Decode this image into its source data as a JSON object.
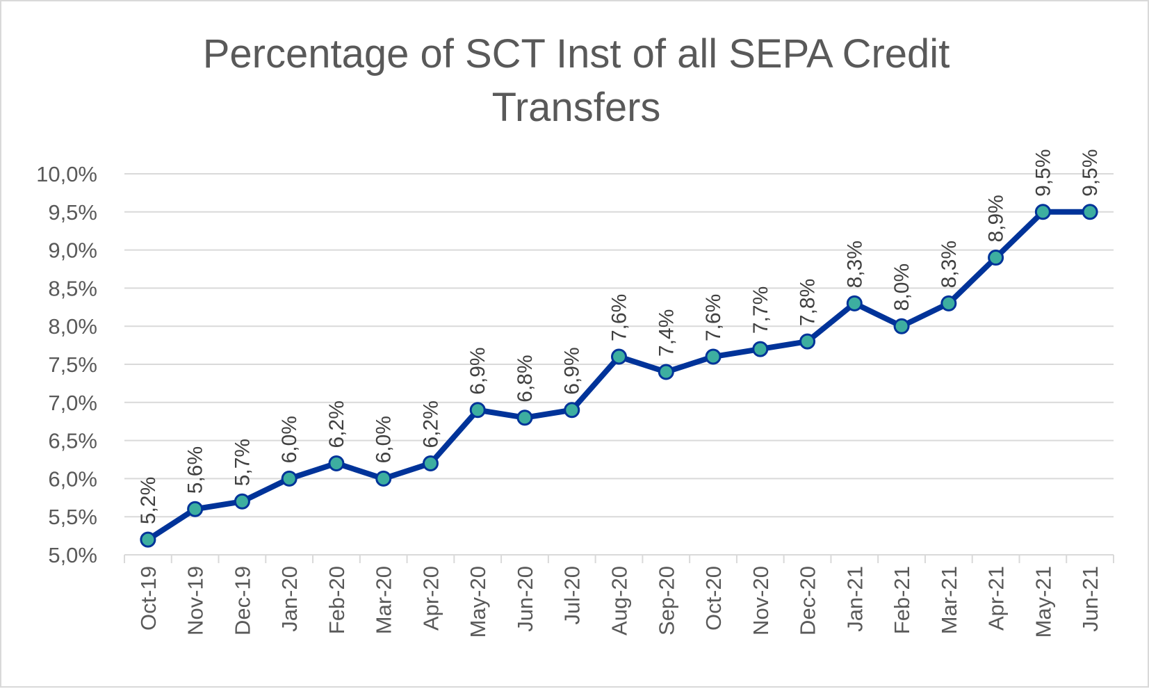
{
  "chart_data": {
    "type": "line",
    "title": "Percentage of SCT Inst of all SEPA Credit Transfers",
    "title_lines": [
      "Percentage of SCT Inst of all SEPA Credit",
      "Transfers"
    ],
    "categories": [
      "Oct-19",
      "Nov-19",
      "Dec-19",
      "Jan-20",
      "Feb-20",
      "Mar-20",
      "Apr-20",
      "May-20",
      "Jun-20",
      "Jul-20",
      "Aug-20",
      "Sep-20",
      "Oct-20",
      "Nov-20",
      "Dec-20",
      "Jan-21",
      "Feb-21",
      "Mar-21",
      "Apr-21",
      "May-21",
      "Jun-21"
    ],
    "values": [
      5.2,
      5.6,
      5.7,
      6.0,
      6.2,
      6.0,
      6.2,
      6.9,
      6.8,
      6.9,
      7.6,
      7.4,
      7.6,
      7.7,
      7.8,
      8.3,
      8.0,
      8.3,
      8.9,
      9.5,
      9.5
    ],
    "data_labels": [
      "5,2%",
      "5,6%",
      "5,7%",
      "6,0%",
      "6,2%",
      "6,0%",
      "6,2%",
      "6,9%",
      "6,8%",
      "6,9%",
      "7,6%",
      "7,4%",
      "7,6%",
      "7,7%",
      "7,8%",
      "8,3%",
      "8,0%",
      "8,3%",
      "8,9%",
      "9,5%",
      "9,5%"
    ],
    "y_ticks": [
      5.0,
      5.5,
      6.0,
      6.5,
      7.0,
      7.5,
      8.0,
      8.5,
      9.0,
      9.5,
      10.0
    ],
    "y_tick_labels": [
      "5,0%",
      "5,5%",
      "6,0%",
      "6,5%",
      "7,0%",
      "7,5%",
      "8,0%",
      "8,5%",
      "9,0%",
      "9,5%",
      "10,0%"
    ],
    "ylim": [
      5.0,
      10.0
    ],
    "xlabel": "",
    "ylabel": "",
    "grid": true,
    "legend": "none",
    "colors": {
      "line": "#003399",
      "marker_fill": "#3daea0",
      "grid": "#d9d9d9",
      "text": "#595959"
    }
  }
}
